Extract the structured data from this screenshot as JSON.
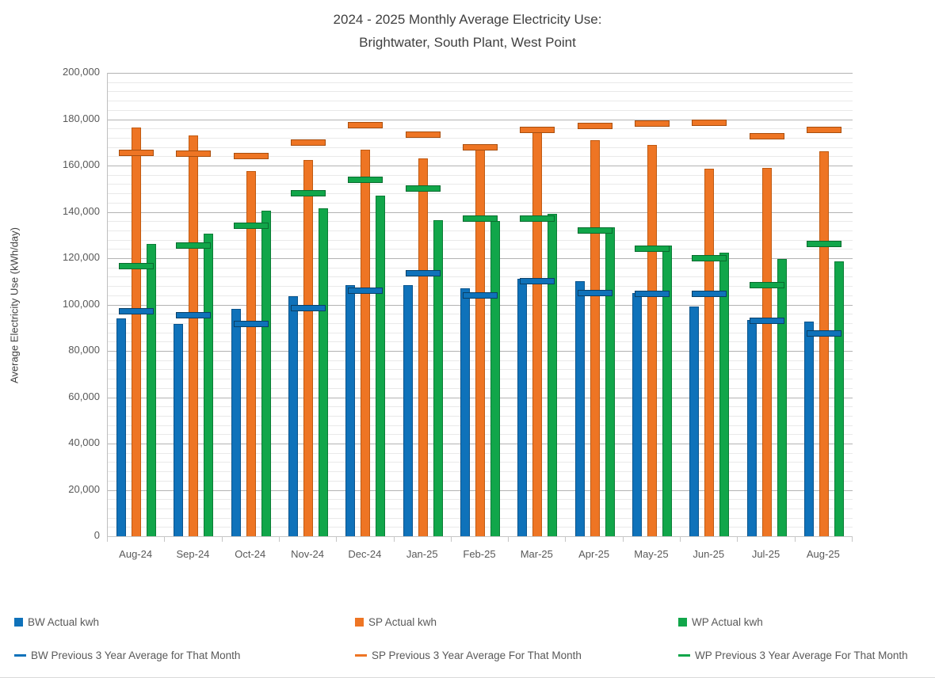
{
  "title": {
    "line1": "2024 - 2025 Monthly Average Electricity Use:",
    "line2": "Brightwater, South Plant, West Point"
  },
  "y_axis_title": "Average Electricity Use (kWh/day)",
  "legend": {
    "actual": [
      {
        "label": "BW Actual kwh"
      },
      {
        "label": "SP Actual kwh"
      },
      {
        "label": "WP Actual kwh"
      }
    ],
    "average": [
      {
        "label": "BW Previous 3 Year Average for That Month"
      },
      {
        "label": "SP Previous 3 Year Average For That Month"
      },
      {
        "label": "WP Previous 3 Year Average For That Month"
      }
    ]
  },
  "chart_data": {
    "type": "bar",
    "title": "2024 - 2025 Monthly Average Electricity Use: Brightwater, South Plant, West Point",
    "xlabel": "",
    "ylabel": "Average Electricity Use (kWh/day)",
    "ylim": [
      0,
      200000
    ],
    "y_major_step": 20000,
    "y_minor_step": 4000,
    "grid": "on",
    "legend_position": "bottom",
    "categories": [
      "Aug-24",
      "Sep-24",
      "Oct-24",
      "Nov-24",
      "Dec-24",
      "Jan-25",
      "Feb-25",
      "Mar-25",
      "Apr-25",
      "May-25",
      "Jun-25",
      "Jul-25",
      "Aug-25"
    ],
    "y_ticks": [
      {
        "value": 0,
        "label": "0"
      },
      {
        "value": 20000,
        "label": "20,000"
      },
      {
        "value": 40000,
        "label": "40,000"
      },
      {
        "value": 60000,
        "label": "60,000"
      },
      {
        "value": 80000,
        "label": "80,000"
      },
      {
        "value": 100000,
        "label": "100,000"
      },
      {
        "value": 120000,
        "label": "120,000"
      },
      {
        "value": 140000,
        "label": "140,000"
      },
      {
        "value": 160000,
        "label": "160,000"
      },
      {
        "value": 180000,
        "label": "180,000"
      },
      {
        "value": 200000,
        "label": "200,000"
      }
    ],
    "series": [
      {
        "id": "bw-actual",
        "name": "BW Actual kwh",
        "render": "bar",
        "color": "#0F72BA",
        "border": "#0a548c",
        "values": [
          94000,
          91500,
          98000,
          103500,
          108500,
          108500,
          107000,
          111000,
          110000,
          105000,
          99000,
          93500,
          92500
        ]
      },
      {
        "id": "sp-actual",
        "name": "SP Actual kwh",
        "render": "bar",
        "color": "#EE7524",
        "border": "#c05a11",
        "values": [
          176500,
          173000,
          157500,
          162500,
          167000,
          163000,
          169000,
          176000,
          171000,
          169000,
          158500,
          159000,
          166000
        ]
      },
      {
        "id": "wp-actual",
        "name": "WP Actual kwh",
        "render": "bar",
        "color": "#11A64A",
        "border": "#0b7d36",
        "values": [
          126000,
          130500,
          140500,
          141500,
          147000,
          136500,
          136000,
          139000,
          133500,
          125500,
          122500,
          119500,
          118500
        ]
      },
      {
        "id": "bw-average",
        "name": "BW Previous 3 Year Average for That Month",
        "render": "dash",
        "color": "#0F72BA",
        "border": "#0a3f66",
        "values": [
          97000,
          95500,
          91500,
          98500,
          106000,
          113500,
          104000,
          110000,
          105000,
          104500,
          104500,
          93000,
          87500
        ]
      },
      {
        "id": "sp-average",
        "name": "SP Previous 3 Year Average For That Month",
        "render": "dash",
        "color": "#EE7524",
        "border": "#a84e0e",
        "values": [
          165500,
          165000,
          164000,
          170000,
          177500,
          173500,
          168000,
          175500,
          177000,
          178000,
          178500,
          172500,
          175500
        ]
      },
      {
        "id": "wp-average",
        "name": "WP Previous 3 Year Average For That Month",
        "render": "dash",
        "color": "#11A64A",
        "border": "#096b2e",
        "values": [
          116500,
          125500,
          134000,
          148000,
          154000,
          150000,
          137000,
          137000,
          132000,
          124000,
          120000,
          108500,
          126000
        ]
      }
    ]
  }
}
